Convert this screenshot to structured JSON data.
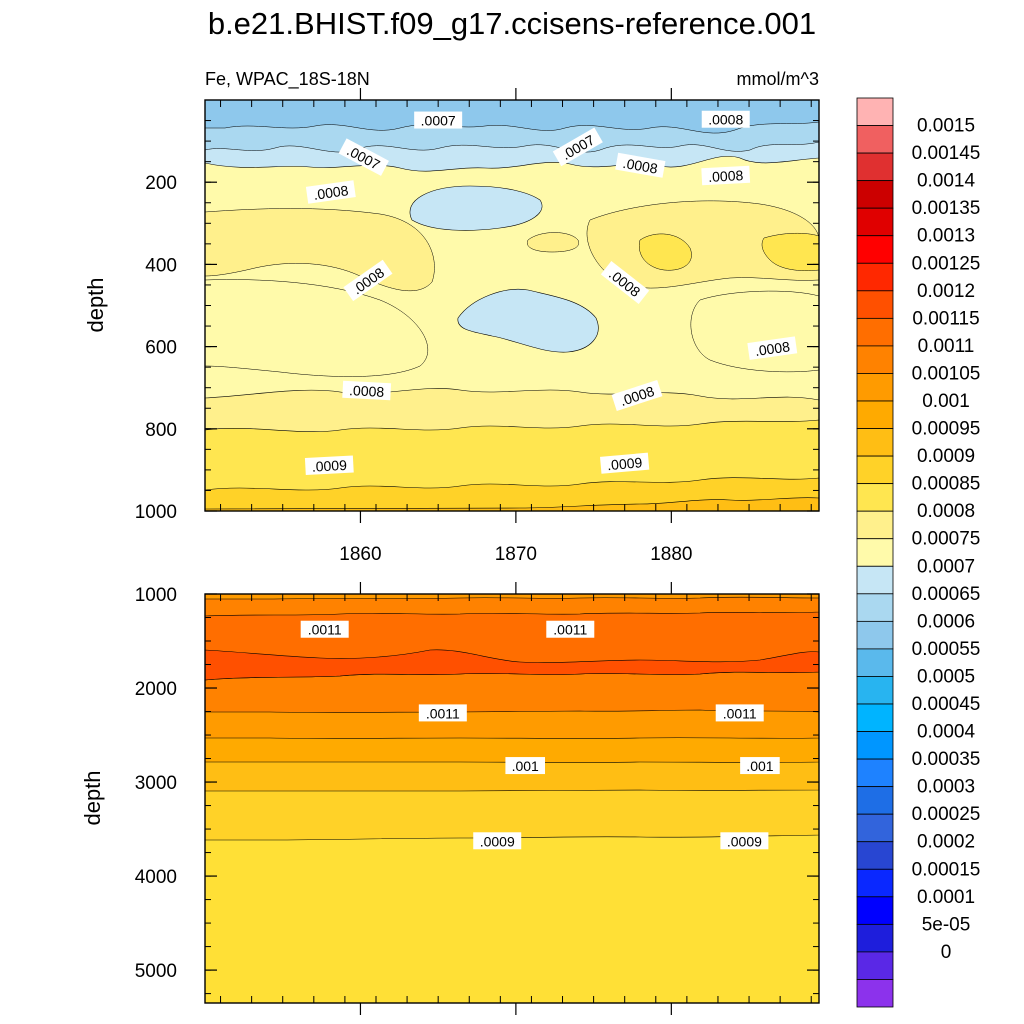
{
  "chart_data": {
    "type": "heatmap",
    "title": "b.e21.BHIST.f09_g17.ccisens-reference.001",
    "variable_label": "Fe, WPAC_18S-18N",
    "units_label": "mmol/m^3",
    "x_tick_labels": [
      "1860",
      "1870",
      "1880"
    ],
    "x_ticks": [
      1860,
      1870,
      1880
    ],
    "xlim": [
      1850,
      1889.5
    ],
    "panels": [
      {
        "name": "upper",
        "ylabel": "depth",
        "ylim": [
          0,
          1000
        ],
        "y_ticks": [
          200,
          400,
          600,
          800,
          1000
        ],
        "y_tick_labels": [
          "200",
          "400",
          "600",
          "800",
          "1000"
        ],
        "contour_labels": [
          {
            "text": ".0007",
            "x": 1865,
            "y": 50,
            "angle": 0
          },
          {
            "text": ".0008",
            "x": 1883.5,
            "y": 48,
            "angle": 0
          },
          {
            "text": ".0007",
            "x": 1860.2,
            "y": 140,
            "angle": 28
          },
          {
            "text": ".0007",
            "x": 1874,
            "y": 115,
            "angle": -30
          },
          {
            "text": ".0008",
            "x": 1878,
            "y": 160,
            "angle": 10
          },
          {
            "text": ".0008",
            "x": 1883.5,
            "y": 185,
            "angle": -3
          },
          {
            "text": ".0008",
            "x": 1858.1,
            "y": 225,
            "angle": -8
          },
          {
            "text": ".0008",
            "x": 1860.5,
            "y": 440,
            "angle": -35
          },
          {
            "text": ".0008",
            "x": 1877,
            "y": 445,
            "angle": 38
          },
          {
            "text": ".0008",
            "x": 1886.5,
            "y": 605,
            "angle": -8
          },
          {
            "text": ".0008",
            "x": 1860.4,
            "y": 708,
            "angle": 3
          },
          {
            "text": ".0008",
            "x": 1877.8,
            "y": 720,
            "angle": -18
          },
          {
            "text": ".0009",
            "x": 1858,
            "y": 890,
            "angle": -3
          },
          {
            "text": ".0009",
            "x": 1877,
            "y": 885,
            "angle": -5
          }
        ]
      },
      {
        "name": "lower",
        "ylabel": "depth",
        "ylim": [
          1000,
          5350
        ],
        "y_ticks": [
          1000,
          2000,
          3000,
          4000,
          5000
        ],
        "y_tick_labels": [
          "1000",
          "2000",
          "3000",
          "4000",
          "5000"
        ],
        "contour_labels": [
          {
            "text": ".0011",
            "x": 1857.7,
            "y": 1380,
            "angle": 0
          },
          {
            "text": ".0011",
            "x": 1873.5,
            "y": 1380,
            "angle": 0
          },
          {
            "text": ".0011",
            "x": 1865.3,
            "y": 2270,
            "angle": 0
          },
          {
            "text": ".0011",
            "x": 1884.4,
            "y": 2270,
            "angle": 0
          },
          {
            "text": ".001",
            "x": 1870.6,
            "y": 2830,
            "angle": 0
          },
          {
            "text": ".001",
            "x": 1885.7,
            "y": 2830,
            "angle": 0
          },
          {
            "text": ".0009",
            "x": 1868.8,
            "y": 3630,
            "angle": 0
          },
          {
            "text": ".0009",
            "x": 1884.7,
            "y": 3630,
            "angle": 0
          }
        ]
      }
    ],
    "colorbar": {
      "labels": [
        "0.0015",
        "0.00145",
        "0.0014",
        "0.00135",
        "0.0013",
        "0.00125",
        "0.0012",
        "0.00115",
        "0.0011",
        "0.00105",
        "0.001",
        "0.00095",
        "0.0009",
        "0.00085",
        "0.0008",
        "0.00075",
        "0.0007",
        "0.00065",
        "0.0006",
        "0.00055",
        "0.0005",
        "0.00045",
        "0.0004",
        "0.00035",
        "0.0003",
        "0.00025",
        "0.0002",
        "0.00015",
        "0.0001",
        "5e-05",
        "0"
      ],
      "colors": [
        "#ffb3b3",
        "#f06060",
        "#e03030",
        "#cc0000",
        "#e00000",
        "#ff0000",
        "#ff2800",
        "#ff5000",
        "#ff6e00",
        "#ff8200",
        "#ff9b00",
        "#ffaa00",
        "#ffbe14",
        "#ffd228",
        "#ffe650",
        "#fff08c",
        "#fffaaa",
        "#c6e6f5",
        "#aad8f0",
        "#8ec8ec",
        "#5ab9ec",
        "#28b4f0",
        "#00b4ff",
        "#0096ff",
        "#1e82ff",
        "#1e6ee6",
        "#3264dc",
        "#2846d2",
        "#0a28ff",
        "#0000ff",
        "#1e1edc",
        "#5a28e6",
        "#8c32ec"
      ]
    }
  }
}
